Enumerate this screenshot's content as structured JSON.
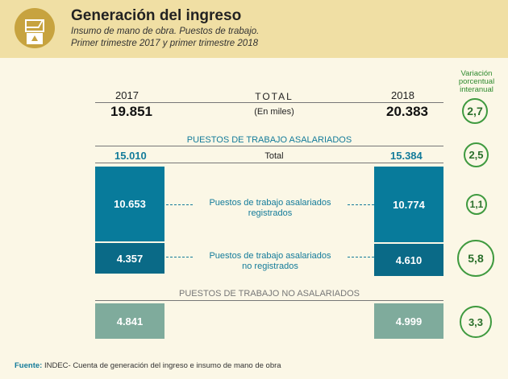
{
  "header": {
    "title": "Generación del ingreso",
    "subtitle1": "Insumo de mano de obra. Puestos de trabajo.",
    "subtitle2": "Primer trimestre 2017 y primer trimestre 2018"
  },
  "variation_label": [
    "Variación",
    "porcentual",
    "interanual"
  ],
  "total": {
    "label": "TOTAL",
    "unit": "(En miles)"
  },
  "section_asalariados": {
    "title": "PUESTOS DE TRABAJO ASALARIADOS",
    "total_label": "Total"
  },
  "section_no_asalariados": {
    "title": "PUESTOS DE TRABAJO NO ASALARIADOS"
  },
  "labels": {
    "registrados": [
      "Puestos de trabajo asalariados",
      "registrados"
    ],
    "no_registrados": [
      "Puestos de trabajo asalariados",
      "no registrados"
    ]
  },
  "footer": {
    "source_label": "Fuente:",
    "source_text": "INDEC- Cuenta de generación del ingreso e insumo de mano de obra"
  },
  "colors": {
    "registrados": "#087b9b",
    "no_registrados": "#0a6a87",
    "no_asalariados": "#7fab9c",
    "circle": "#3f9a3f"
  },
  "chart_data": {
    "type": "bar",
    "title": "Generación del ingreso",
    "unit": "miles",
    "years": [
      "2017",
      "2018"
    ],
    "total": {
      "2017": "19.851",
      "2018": "20.383",
      "variation": "2,7"
    },
    "asalariados_total": {
      "2017": "15.010",
      "2018": "15.384",
      "variation": "2,5"
    },
    "series": [
      {
        "name": "Puestos de trabajo asalariados registrados",
        "values": [
          "10.653",
          "10.774"
        ],
        "variation": "1,1"
      },
      {
        "name": "Puestos de trabajo asalariados no registrados",
        "values": [
          "4.357",
          "4.610"
        ],
        "variation": "5,8"
      },
      {
        "name": "Puestos de trabajo no asalariados",
        "values": [
          "4.841",
          "4.999"
        ],
        "variation": "3,3"
      }
    ]
  }
}
